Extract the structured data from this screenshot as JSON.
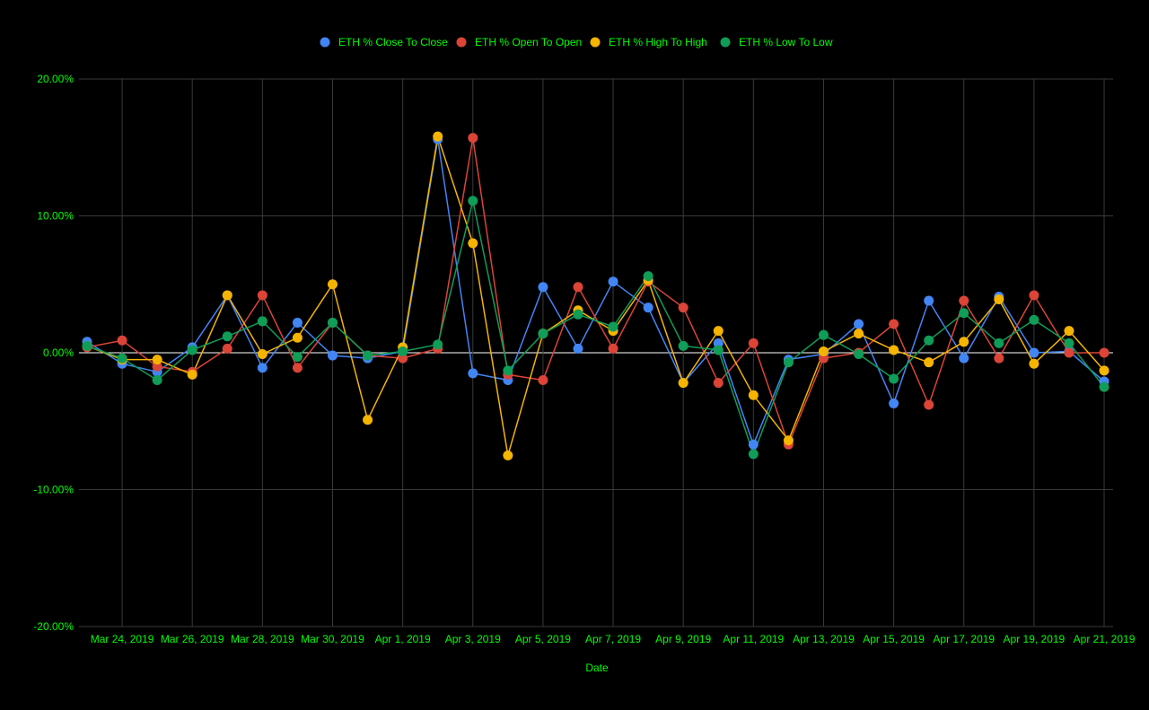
{
  "chart_data": {
    "type": "line",
    "xlabel": "Date",
    "ylabel": "",
    "ylim": [
      -20,
      20
    ],
    "y_ticks": [
      "20.00%",
      "10.00%",
      "0.00%",
      "-10.00%",
      "-20.00%"
    ],
    "y_tick_values": [
      20,
      10,
      0,
      -10,
      -20
    ],
    "x_tick_labels": [
      "Mar 24, 2019",
      "Mar 26, 2019",
      "Mar 28, 2019",
      "Mar 30, 2019",
      "Apr 1, 2019",
      "Apr 3, 2019",
      "Apr 5, 2019",
      "Apr 7, 2019",
      "Apr 9, 2019",
      "Apr 11, 2019",
      "Apr 13, 2019",
      "Apr 15, 2019",
      "Apr 17, 2019",
      "Apr 19, 2019",
      "Apr 21, 2019"
    ],
    "x": [
      "2019-03-23",
      "2019-03-24",
      "2019-03-25",
      "2019-03-26",
      "2019-03-27",
      "2019-03-28",
      "2019-03-29",
      "2019-03-30",
      "2019-03-31",
      "2019-04-01",
      "2019-04-02",
      "2019-04-03",
      "2019-04-04",
      "2019-04-05",
      "2019-04-06",
      "2019-04-07",
      "2019-04-08",
      "2019-04-09",
      "2019-04-10",
      "2019-04-11",
      "2019-04-12",
      "2019-04-13",
      "2019-04-14",
      "2019-04-15",
      "2019-04-16",
      "2019-04-17",
      "2019-04-18",
      "2019-04-19",
      "2019-04-20",
      "2019-04-21"
    ],
    "grid": true,
    "legend_position": "top",
    "zero_line_color": "#ffffff",
    "grid_color": "#3a3a3a",
    "text_color": "#00ff00",
    "background": "#000000",
    "series": [
      {
        "name": "ETH % Close To Close",
        "color": "#4285f4",
        "values": [
          0.8,
          -0.8,
          -1.4,
          0.4,
          4.2,
          -1.1,
          2.2,
          -0.2,
          -0.4,
          0.1,
          15.6,
          -1.5,
          -2.0,
          4.8,
          0.3,
          5.2,
          3.3,
          -2.2,
          0.7,
          -6.7,
          -0.5,
          -0.1,
          2.1,
          -3.7,
          3.8,
          -0.4,
          4.1,
          0.0,
          0.1,
          -2.1
        ]
      },
      {
        "name": "ETH % Open To Open",
        "color": "#db4437",
        "values": [
          0.4,
          0.9,
          -1.0,
          -1.4,
          0.3,
          4.2,
          -1.1,
          2.2,
          -0.2,
          -0.4,
          0.3,
          15.7,
          -1.6,
          -2.0,
          4.8,
          0.3,
          5.2,
          3.3,
          -2.2,
          0.7,
          -6.7,
          -0.4,
          0.0,
          2.1,
          -3.8,
          3.8,
          -0.4,
          4.2,
          0.0,
          0.0
        ]
      },
      {
        "name": "ETH % High To High",
        "color": "#f4b400",
        "values": [
          0.5,
          -0.5,
          -0.5,
          -1.6,
          4.2,
          -0.1,
          1.1,
          5.0,
          -4.9,
          0.4,
          15.8,
          8.0,
          -7.5,
          1.4,
          3.1,
          1.6,
          5.3,
          -2.2,
          1.6,
          -3.1,
          -6.4,
          0.1,
          1.4,
          0.2,
          -0.7,
          0.8,
          3.9,
          -0.8,
          1.6,
          -1.3
        ]
      },
      {
        "name": "ETH % Low To Low",
        "color": "#0f9d58",
        "values": [
          0.5,
          -0.4,
          -2.0,
          0.2,
          1.2,
          2.3,
          -0.3,
          2.2,
          -0.2,
          0.1,
          0.6,
          11.1,
          -1.3,
          1.4,
          2.8,
          1.9,
          5.6,
          0.5,
          0.2,
          -7.4,
          -0.7,
          1.3,
          -0.1,
          -1.9,
          0.9,
          2.9,
          0.7,
          2.4,
          0.7,
          -2.5
        ]
      }
    ]
  }
}
